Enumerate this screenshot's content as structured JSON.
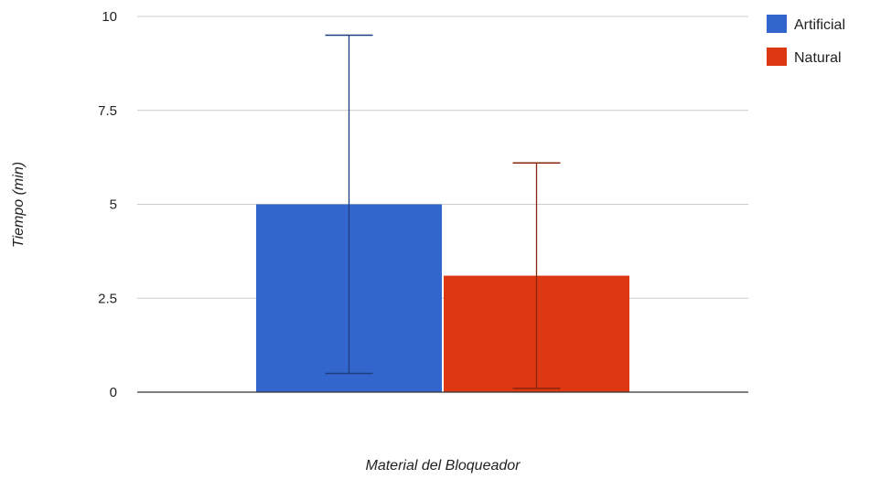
{
  "chart_data": {
    "type": "bar",
    "xlabel": "Material del Bloqueador",
    "ylabel": "Tiempo (min)",
    "ylim": [
      0,
      10
    ],
    "y_ticks": [
      0,
      2.5,
      5,
      7.5,
      10
    ],
    "y_tick_labels": [
      "0",
      "2.5",
      "5",
      "7.5",
      "10"
    ],
    "grid": true,
    "legend_position": "right",
    "series": [
      {
        "name": "Artificial",
        "color": "#3366cc",
        "error_color": "#1c3d80",
        "value": 5.0,
        "error_low": 0.5,
        "error_high": 9.5
      },
      {
        "name": "Natural",
        "color": "#dc3912",
        "error_color": "#8a230b",
        "value": 3.1,
        "error_low": 0.1,
        "error_high": 6.1
      }
    ]
  }
}
